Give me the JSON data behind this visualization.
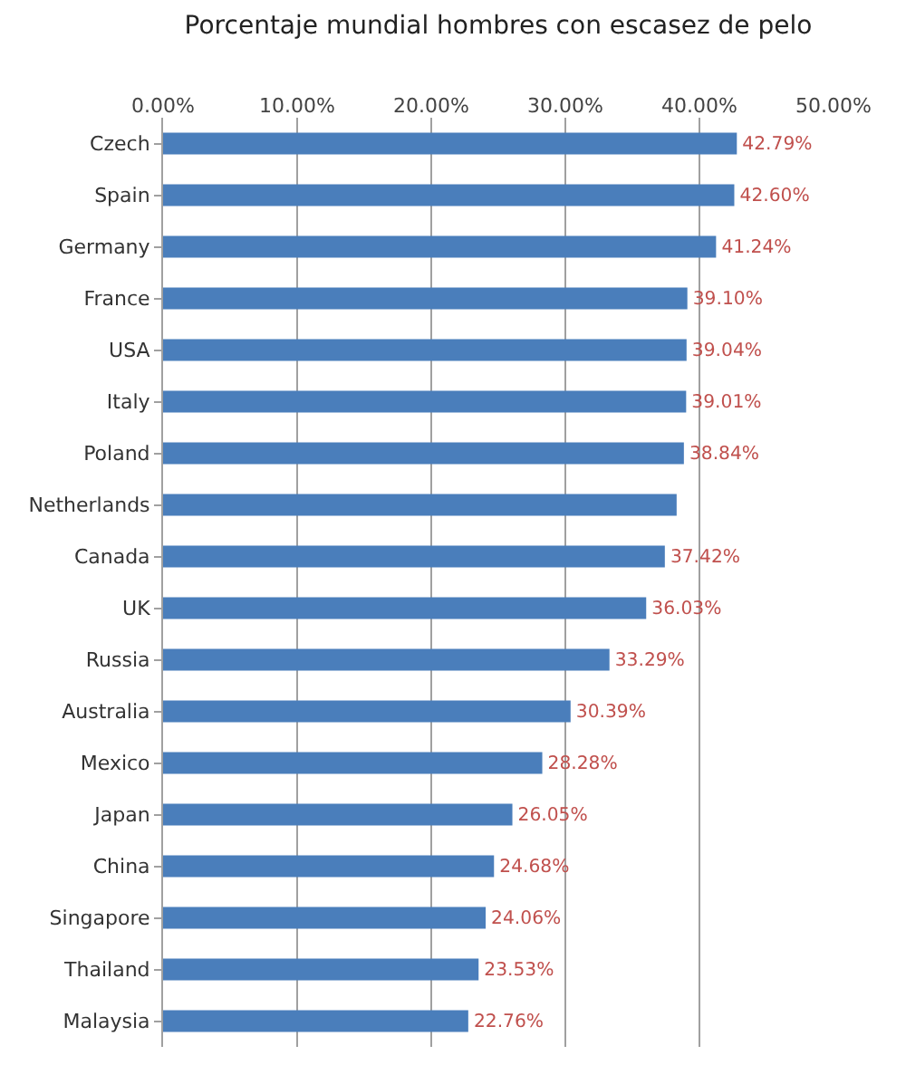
{
  "chart_data": {
    "type": "bar",
    "orientation": "horizontal",
    "title": "Porcentaje mundial hombres con escasez de pelo",
    "categories": [
      "Czech",
      "Spain",
      "Germany",
      "France",
      "USA",
      "Italy",
      "Poland",
      "Netherlands",
      "Canada",
      "UK",
      "Russia",
      "Australia",
      "Mexico",
      "Japan",
      "China",
      "Singapore",
      "Thailand",
      "Malaysia"
    ],
    "values": [
      42.79,
      42.6,
      41.24,
      39.1,
      39.04,
      39.01,
      38.84,
      38.3,
      37.42,
      36.03,
      33.29,
      30.39,
      28.28,
      26.05,
      24.68,
      24.06,
      23.53,
      22.76
    ],
    "value_labels": [
      "42.79%",
      "42.60%",
      "41.24%",
      "39.10%",
      "39.04%",
      "39.01%",
      "38.84%",
      null,
      "37.42%",
      "36.03%",
      "33.29%",
      "30.39%",
      "28.28%",
      "26.05%",
      "24.68%",
      "24.06%",
      "23.53%",
      "22.76%"
    ],
    "color": "#4a7ebb",
    "xlim": [
      0,
      50
    ],
    "xticks": [
      {
        "value": 0,
        "label": "0.00%"
      },
      {
        "value": 10,
        "label": "10.00%"
      },
      {
        "value": 20,
        "label": "20.00%"
      },
      {
        "value": 30,
        "label": "30.00%"
      },
      {
        "value": 40,
        "label": "40.00%"
      },
      {
        "value": 50,
        "label": "50.00%"
      }
    ],
    "grid": "x"
  }
}
